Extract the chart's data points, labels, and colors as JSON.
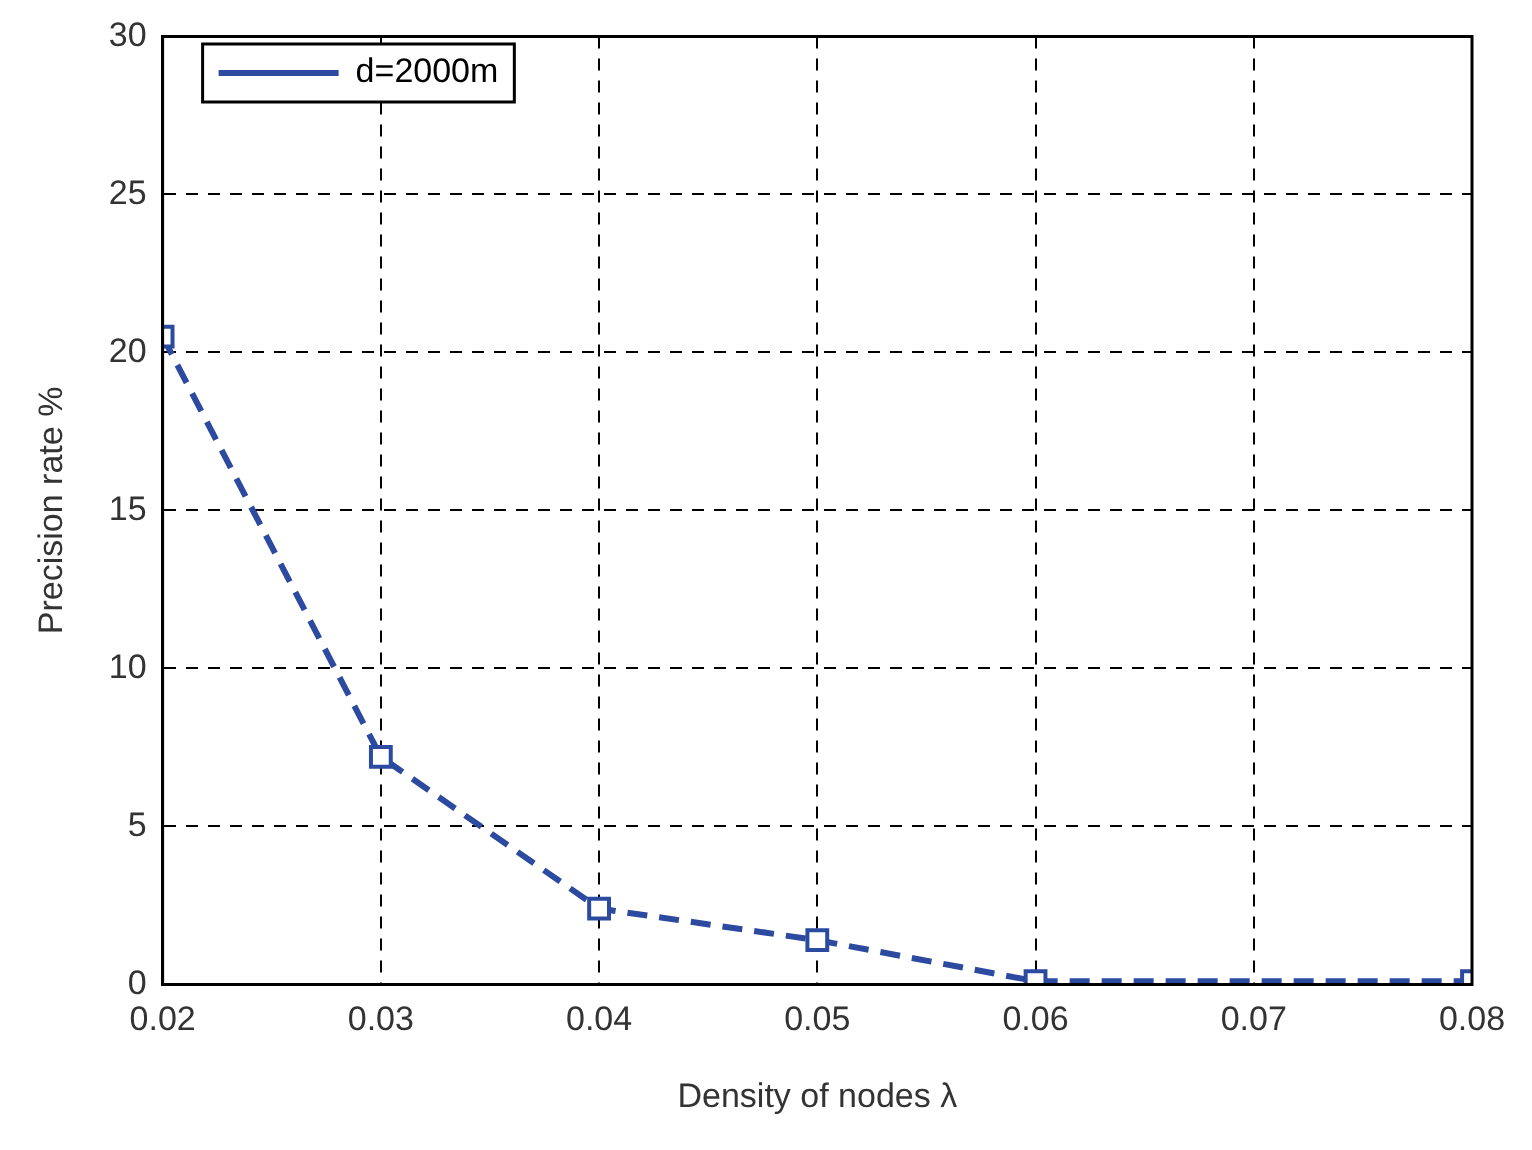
{
  "chart_data": {
    "type": "line",
    "xlabel": "Density of nodes λ",
    "ylabel": "Precision rate %",
    "x": [
      0.02,
      0.03,
      0.04,
      0.05,
      0.06,
      0.08
    ],
    "series": [
      {
        "name": "d=2000m",
        "color": "#2b4aa0",
        "values": [
          20.5,
          7.2,
          2.4,
          1.4,
          0.1,
          0.1
        ]
      }
    ],
    "xlim": [
      0.02,
      0.08
    ],
    "xticks": [
      0.02,
      0.03,
      0.04,
      0.05,
      0.06,
      0.07,
      0.08
    ],
    "ylim": [
      0,
      30
    ],
    "yticks": [
      0,
      5,
      10,
      15,
      20,
      25,
      30
    ],
    "grid": true,
    "legend": "top left",
    "marker": "square",
    "line_style": "dashed"
  }
}
